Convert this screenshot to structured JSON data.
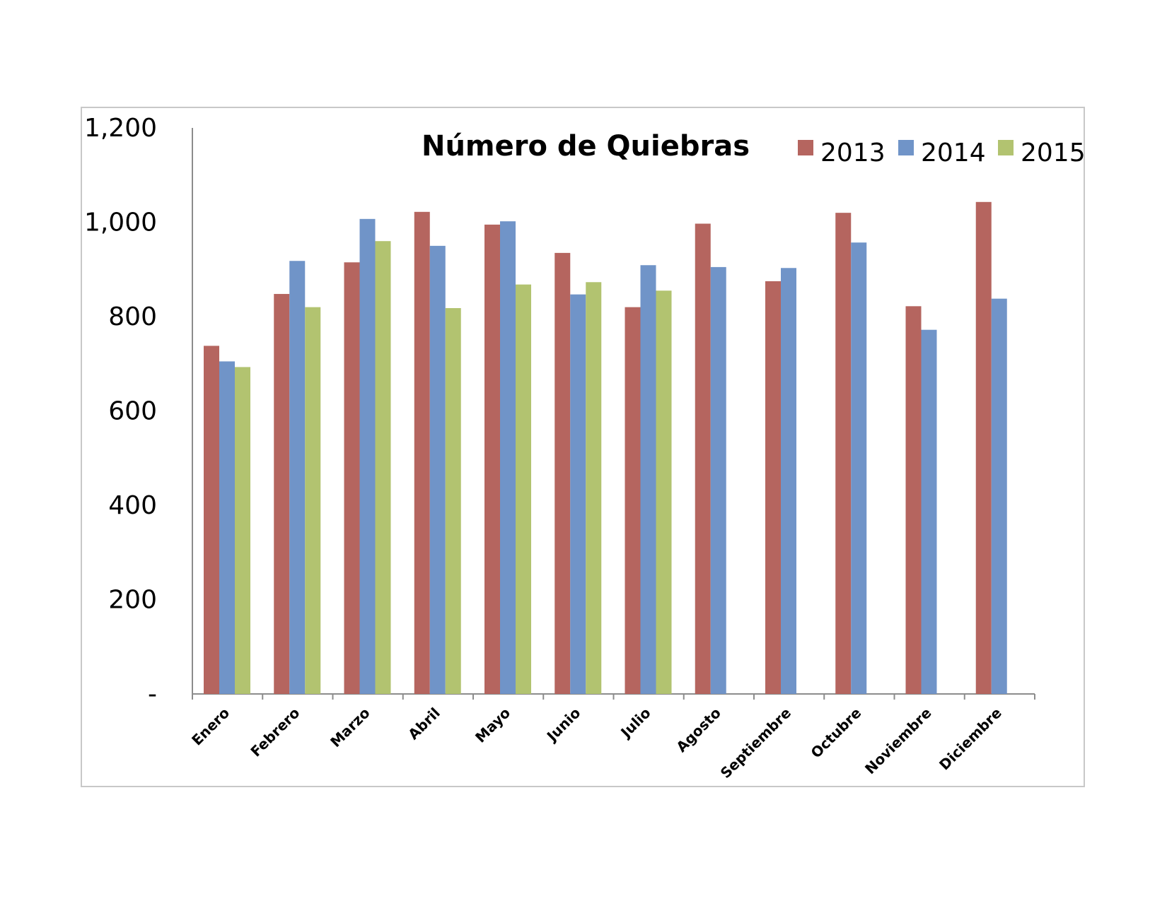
{
  "chart_data": {
    "type": "bar",
    "title": "Número de Quiebras",
    "xlabel": "",
    "ylabel": "",
    "ylim": [
      0,
      1200
    ],
    "yticks": [
      {
        "value": 0,
        "label": "-"
      },
      {
        "value": 200,
        "label": "200"
      },
      {
        "value": 400,
        "label": "400"
      },
      {
        "value": 600,
        "label": "600"
      },
      {
        "value": 800,
        "label": "800"
      },
      {
        "value": 1000,
        "label": "1,000"
      },
      {
        "value": 1200,
        "label": "1,200"
      }
    ],
    "grid": false,
    "legend_position": "top-right",
    "categories": [
      "Enero",
      "Febrero",
      "Marzo",
      "Abril",
      "Mayo",
      "Junio",
      "Julio",
      "Agosto",
      "Septiembre",
      "Octubre",
      "Noviembre",
      "Diciembre"
    ],
    "series": [
      {
        "name": "2013",
        "color": "#b5655f",
        "values": [
          738,
          848,
          915,
          1022,
          995,
          935,
          820,
          997,
          875,
          1020,
          822,
          1043
        ]
      },
      {
        "name": "2014",
        "color": "#7094c8",
        "values": [
          705,
          918,
          1007,
          950,
          1002,
          847,
          909,
          905,
          903,
          957,
          772,
          838
        ]
      },
      {
        "name": "2015",
        "color": "#b2c370",
        "values": [
          693,
          820,
          960,
          818,
          868,
          873,
          855,
          null,
          null,
          null,
          null,
          null
        ]
      }
    ]
  }
}
